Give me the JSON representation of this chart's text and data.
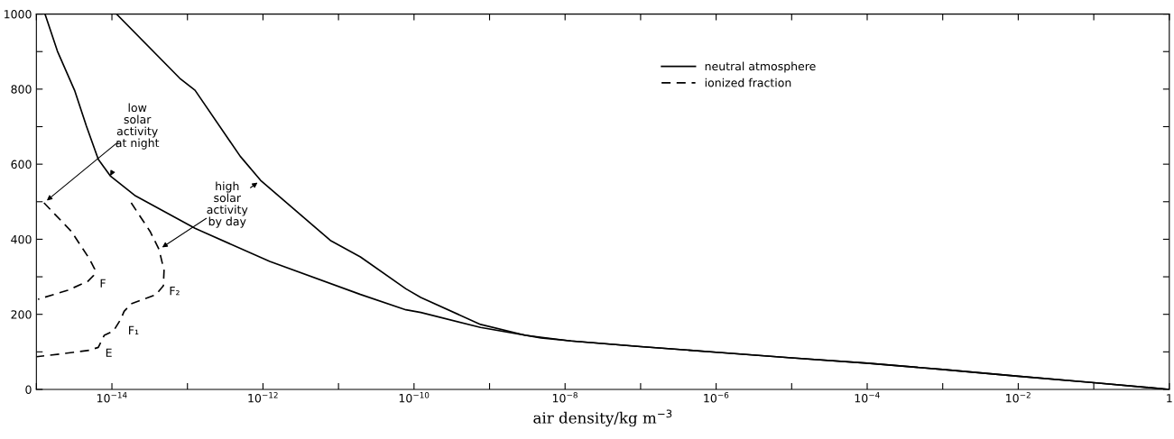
{
  "chart_data": {
    "type": "line",
    "xlabel": "air density/kg m$^{−3}$",
    "log": "x",
    "xlim": [
      1e-15,
      1
    ],
    "ylim": [
      0,
      1000
    ],
    "xticks": [
      {
        "value": 1e-15,
        "label": null
      },
      {
        "value": 1e-14,
        "label": "10$^{−14}$"
      },
      {
        "value": 1e-13,
        "label": null
      },
      {
        "value": 1e-12,
        "label": "10$^{−12}$"
      },
      {
        "value": 1e-11,
        "label": null
      },
      {
        "value": 1e-10,
        "label": "10$^{−10}$"
      },
      {
        "value": 1e-09,
        "label": null
      },
      {
        "value": 1e-08,
        "label": "10$^{−8}$"
      },
      {
        "value": 1e-07,
        "label": null
      },
      {
        "value": 1e-06,
        "label": "10$^{−6}$"
      },
      {
        "value": 1e-05,
        "label": null
      },
      {
        "value": 0.0001,
        "label": "10$^{−4}$"
      },
      {
        "value": 0.001,
        "label": null
      },
      {
        "value": 0.01,
        "label": "10$^{−2}$"
      },
      {
        "value": 0.1,
        "label": null
      },
      {
        "value": 1,
        "label": "1"
      }
    ],
    "yticks": [
      0,
      {
        "value": 100,
        "label": null
      },
      200,
      {
        "value": 300,
        "label": null
      },
      400,
      {
        "value": 500,
        "label": null
      },
      600,
      {
        "value": 700,
        "label": null
      },
      800,
      {
        "value": 900,
        "label": null
      },
      1000
    ],
    "grid": false,
    "legend": "top",
    "marker": "none",
    "series": [
      {
        "name": "neutral atmosphere",
        "color": "#000000",
        "line_style": "solid",
        "x": [
          1.3e-15,
          1.9e-15,
          3.2e-15,
          4.6e-15,
          6.6e-15,
          9.5e-15,
          2e-14,
          1.26e-13,
          1.23e-12,
          1.95e-11,
          7.8e-11,
          1.23e-10,
          7.6e-10,
          4.8e-09,
          1.2e-08,
          1e-07,
          1e-06,
          1e-05,
          0.0001,
          0.001,
          0.01,
          0.1,
          1
        ],
        "values": [
          1000,
          901,
          797,
          701,
          613,
          569,
          517,
          429,
          341,
          253,
          212,
          205,
          165,
          137,
          129,
          114,
          99,
          84,
          70,
          53,
          35,
          18,
          0
        ]
      },
      {
        "color": "#000000",
        "line_style": "solid",
        "x": [
          1.15e-14,
          7.9e-14,
          1.26e-13,
          5e-13,
          9.3e-13,
          7.8e-12,
          1.95e-11,
          7.8e-11,
          1.23e-10,
          7.6e-10,
          3e-09,
          1.2e-08,
          1e-07,
          1e-06,
          1e-05,
          0.0001,
          0.001,
          0.01,
          0.1,
          1
        ],
        "values": [
          1000,
          829,
          797,
          621,
          557,
          397,
          353,
          268,
          245,
          173,
          144,
          129,
          114,
          99,
          84,
          70,
          53,
          35,
          18,
          0
        ]
      },
      {
        "name": "ionized fraction",
        "color": "#000000",
        "line_style": "dashed",
        "x": [
          1.26e-15,
          2.9e-15,
          5e-15,
          5.9e-15,
          5.75e-15,
          4.8e-15,
          2.6e-15,
          1.05e-15
        ],
        "values": [
          497,
          421,
          349,
          321,
          304,
          288,
          264,
          240
        ]
      },
      {
        "color": "#000000",
        "line_style": "dashed",
        "x": [
          1.8e-14,
          3.2e-14,
          4.2e-14,
          4.9e-14,
          4.8e-14,
          3.8e-14,
          1.8e-14,
          1.45e-14,
          1.32e-14,
          1.05e-14,
          7.9e-15,
          6.6e-15,
          5e-15,
          2e-15,
          1e-15
        ],
        "values": [
          497,
          421,
          373,
          317,
          276,
          252,
          228,
          208,
          188,
          156,
          144,
          112,
          104,
          94,
          87
        ]
      }
    ],
    "annotations": [
      {
        "text": "low\nsolar\nactivity\nat night",
        "x": 9.5e-15,
        "y": 569
      },
      {
        "text": "high\nsolar\nactivity\nby day",
        "x": 9.3e-13,
        "y": 557
      },
      {
        "text": "F",
        "x": 5.9e-15,
        "y": 300
      },
      {
        "text": "F₂",
        "x": 4.9e-14,
        "y": 280
      },
      {
        "text": "F₁",
        "x": 1.4e-14,
        "y": 175
      },
      {
        "text": "E",
        "x": 7e-15,
        "y": 115
      }
    ]
  }
}
